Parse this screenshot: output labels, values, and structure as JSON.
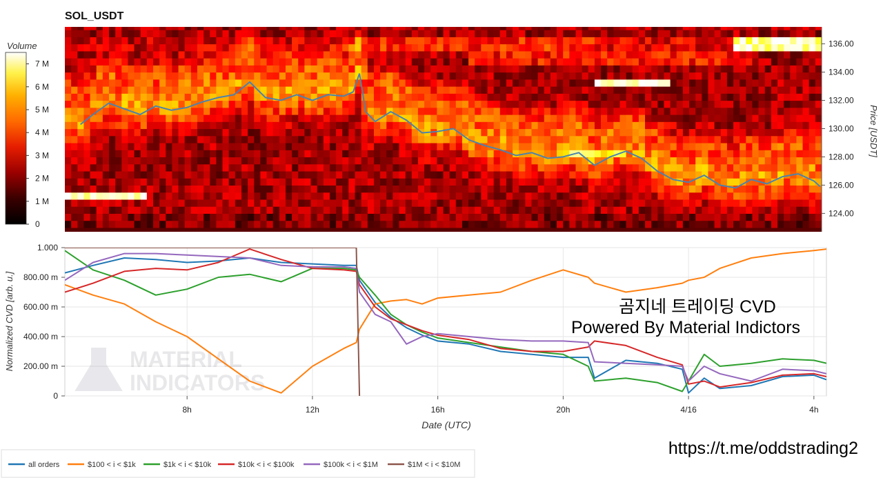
{
  "title": "SOL_USDT",
  "colorbar": {
    "label": "Volume",
    "ticks": [
      "0",
      "1 M",
      "2 M",
      "3 M",
      "4 M",
      "5 M",
      "6 M",
      "7 M"
    ]
  },
  "overlay": {
    "line1": "곰지네 트레이딩 CVD",
    "line2": "Powered By Material Indictors",
    "url": "https://t.me/oddstrading2"
  },
  "watermark": {
    "line1": "MATERIAL",
    "line2": "INDICATORS"
  },
  "colors": {
    "price_line": "#4a83b0",
    "all_orders": "#1f77b4",
    "s100_1k": "#ff7f0e",
    "s1k_10k": "#2ca02c",
    "s10k_100k": "#d62728",
    "s100k_1m": "#9467bd",
    "s1m_10m": "#8c564b"
  },
  "chart_data": [
    {
      "type": "heatmap",
      "title": "SOL_USDT",
      "ylabel": "Price [USDT]",
      "ylim": [
        122.7,
        137.2
      ],
      "y_ticks": [
        "124.00",
        "126.00",
        "128.00",
        "130.00",
        "132.00",
        "134.00",
        "136.00"
      ],
      "y_tick_values": [
        124,
        126,
        128,
        130,
        132,
        134,
        136
      ],
      "color_scale": "hot",
      "zlim": [
        0,
        7500000
      ],
      "price_series": {
        "name": "price",
        "t": [
          4.6,
          5.0,
          5.5,
          6.0,
          6.5,
          7.0,
          7.5,
          8.0,
          8.5,
          9.0,
          9.5,
          10.0,
          10.5,
          11.0,
          11.5,
          12.0,
          12.5,
          13.0,
          13.3,
          13.5,
          13.7,
          14.0,
          14.5,
          15.0,
          15.5,
          16.0,
          16.5,
          17.0,
          17.5,
          18.0,
          18.5,
          19.0,
          19.5,
          20.0,
          20.5,
          21.0,
          21.5,
          22.0,
          22.5,
          23.0,
          23.5,
          24.0,
          24.5,
          25.0,
          25.5,
          26.0,
          26.5,
          27.0,
          27.5,
          28.0,
          28.2
        ],
        "price": [
          130.3,
          131.0,
          131.8,
          131.4,
          131.0,
          131.6,
          131.3,
          131.5,
          131.9,
          132.2,
          132.4,
          133.3,
          132.2,
          132.0,
          132.4,
          132.0,
          132.4,
          132.3,
          132.6,
          133.9,
          131.2,
          130.5,
          131.2,
          130.6,
          129.7,
          129.8,
          130.0,
          129.2,
          128.8,
          128.5,
          128.1,
          128.3,
          127.9,
          128.0,
          128.3,
          127.4,
          128.0,
          128.4,
          127.9,
          127.0,
          126.4,
          126.2,
          126.7,
          126.0,
          125.8,
          126.4,
          126.1,
          126.6,
          126.8,
          126.3,
          125.9
        ]
      }
    },
    {
      "type": "line",
      "xlabel": "Date (UTC)",
      "ylabel": "Normalized CVD [arb. u.]",
      "xlim": [
        4.1,
        28.4
      ],
      "ylim": [
        0,
        1.0
      ],
      "x_ticks": [
        "8h",
        "12h",
        "16h",
        "20h",
        "4/16",
        "4h"
      ],
      "x_tick_values": [
        8,
        12,
        16,
        20,
        24,
        28
      ],
      "y_ticks": [
        "0",
        "200.00 m",
        "400.00 m",
        "600.00 m",
        "800.00 m",
        "1.000"
      ],
      "y_tick_values": [
        0,
        0.2,
        0.4,
        0.6,
        0.8,
        1.0
      ],
      "legend_placement": "bottom",
      "x": [
        4.1,
        5.0,
        6.0,
        7.0,
        8.0,
        9.0,
        10.0,
        11.0,
        12.0,
        13.0,
        13.4,
        13.5,
        14.0,
        14.5,
        15.0,
        15.5,
        16.0,
        17.0,
        18.0,
        19.0,
        20.0,
        20.8,
        21.0,
        22.0,
        23.0,
        23.8,
        24.0,
        24.5,
        25.0,
        26.0,
        27.0,
        28.0,
        28.4
      ],
      "series": [
        {
          "name": "all orders",
          "key": "all_orders",
          "values": [
            0.83,
            0.88,
            0.93,
            0.92,
            0.9,
            0.91,
            0.93,
            0.9,
            0.89,
            0.88,
            0.88,
            0.78,
            0.63,
            0.53,
            0.46,
            0.41,
            0.37,
            0.35,
            0.3,
            0.28,
            0.26,
            0.26,
            0.12,
            0.24,
            0.22,
            0.18,
            0.02,
            0.12,
            0.05,
            0.07,
            0.13,
            0.14,
            0.11
          ]
        },
        {
          "name": "$100 < i < $1k",
          "key": "s100_1k",
          "values": [
            0.75,
            0.68,
            0.62,
            0.5,
            0.4,
            0.25,
            0.1,
            0.02,
            0.2,
            0.32,
            0.36,
            0.45,
            0.62,
            0.64,
            0.65,
            0.62,
            0.66,
            0.68,
            0.7,
            0.78,
            0.85,
            0.8,
            0.76,
            0.7,
            0.73,
            0.76,
            0.78,
            0.8,
            0.86,
            0.93,
            0.96,
            0.98,
            0.99
          ]
        },
        {
          "name": "$1k < i < $10k",
          "key": "s1k_10k",
          "values": [
            0.98,
            0.85,
            0.78,
            0.68,
            0.72,
            0.8,
            0.82,
            0.77,
            0.86,
            0.86,
            0.85,
            0.8,
            0.68,
            0.55,
            0.48,
            0.43,
            0.39,
            0.36,
            0.33,
            0.3,
            0.28,
            0.2,
            0.1,
            0.12,
            0.09,
            0.03,
            0.1,
            0.28,
            0.2,
            0.22,
            0.25,
            0.24,
            0.22
          ]
        },
        {
          "name": "$10k < i < $100k",
          "key": "s10k_100k",
          "values": [
            0.7,
            0.76,
            0.84,
            0.86,
            0.85,
            0.9,
            0.99,
            0.92,
            0.86,
            0.85,
            0.84,
            0.75,
            0.6,
            0.52,
            0.48,
            0.44,
            0.41,
            0.38,
            0.32,
            0.3,
            0.3,
            0.33,
            0.37,
            0.34,
            0.26,
            0.21,
            0.08,
            0.1,
            0.06,
            0.09,
            0.14,
            0.15,
            0.13
          ]
        },
        {
          "name": "$100k < i < $1M",
          "key": "s100k_1m",
          "values": [
            0.78,
            0.9,
            0.96,
            0.96,
            0.95,
            0.94,
            0.93,
            0.88,
            0.87,
            0.87,
            0.86,
            0.7,
            0.55,
            0.5,
            0.35,
            0.4,
            0.42,
            0.4,
            0.38,
            0.37,
            0.37,
            0.36,
            0.23,
            0.22,
            0.21,
            0.2,
            0.1,
            0.2,
            0.15,
            0.1,
            0.18,
            0.17,
            0.15
          ]
        },
        {
          "name": "$1M < i < $10M",
          "key": "s1m_10m",
          "values": [
            1.0,
            1.0,
            1.0,
            1.0,
            1.0,
            1.0,
            1.0,
            1.0,
            1.0,
            1.0,
            1.0,
            0.0,
            null,
            null,
            null,
            null,
            null,
            null,
            null,
            null,
            null,
            null,
            null,
            null,
            null,
            null,
            null,
            null,
            null,
            null,
            null,
            null,
            null
          ]
        }
      ]
    }
  ]
}
